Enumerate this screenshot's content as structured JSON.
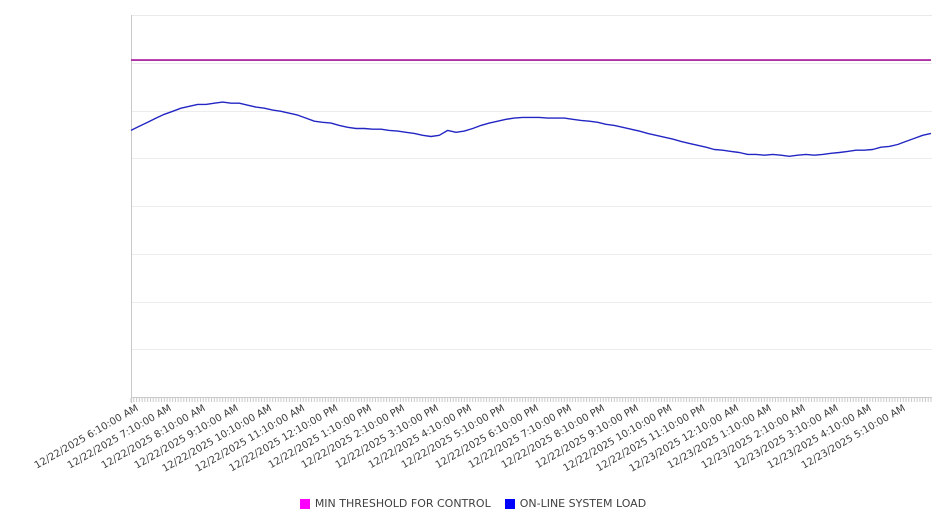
{
  "chart_data": {
    "type": "line",
    "title": "",
    "x_axis": {
      "label_angle_deg": -30,
      "label_interval_minutes": 60,
      "minor_tick_interval_minutes": 5,
      "total_minutes": 1440,
      "tick_labels": [
        "12/22/2025 6:10:00 AM",
        "12/22/2025 7:10:00 AM",
        "12/22/2025 8:10:00 AM",
        "12/22/2025 9:10:00 AM",
        "12/22/2025 10:10:00 AM",
        "12/22/2025 11:10:00 AM",
        "12/22/2025 12:10:00 PM",
        "12/22/2025 1:10:00 PM",
        "12/22/2025 2:10:00 PM",
        "12/22/2025 3:10:00 PM",
        "12/22/2025 4:10:00 PM",
        "12/22/2025 5:10:00 PM",
        "12/22/2025 6:10:00 PM",
        "12/22/2025 7:10:00 PM",
        "12/22/2025 8:10:00 PM",
        "12/22/2025 9:10:00 PM",
        "12/22/2025 10:10:00 PM",
        "12/22/2025 11:10:00 PM",
        "12/23/2025 12:10:00 AM",
        "12/23/2025 1:10:00 AM",
        "12/23/2025 2:10:00 AM",
        "12/23/2025 3:10:00 AM",
        "12/23/2025 4:10:00 AM",
        "12/23/2025 5:10:00 AM"
      ]
    },
    "y_axis": {
      "tick_labels_visible": false,
      "gridline_divisions": 8,
      "implied_range_pct": [
        0,
        100
      ]
    },
    "series": [
      {
        "name": "MIN THRESHOLD FOR CONTROL",
        "type": "threshold-line",
        "color": "#ff00ff",
        "render_color": "#ae2fa6",
        "value_pct": 88.2
      },
      {
        "name": "ON-LINE SYSTEM LOAD",
        "type": "line",
        "color": "#0000ff",
        "render_color": "#2326c3",
        "interval_minutes": 15,
        "values_pct": [
          69.8,
          70.9,
          71.9,
          73.0,
          74.0,
          74.8,
          75.6,
          76.1,
          76.6,
          76.6,
          76.9,
          77.2,
          76.9,
          76.9,
          76.4,
          75.9,
          75.6,
          75.1,
          74.8,
          74.3,
          73.8,
          73.0,
          72.2,
          71.9,
          71.7,
          71.1,
          70.6,
          70.3,
          70.3,
          70.1,
          70.1,
          69.8,
          69.6,
          69.3,
          69.0,
          68.5,
          68.2,
          68.5,
          69.8,
          69.3,
          69.6,
          70.3,
          71.1,
          71.7,
          72.2,
          72.7,
          73.0,
          73.2,
          73.2,
          73.2,
          73.0,
          73.0,
          73.0,
          72.7,
          72.4,
          72.2,
          71.9,
          71.4,
          71.1,
          70.6,
          70.1,
          69.6,
          69.0,
          68.5,
          68.0,
          67.5,
          66.9,
          66.4,
          65.9,
          65.4,
          64.8,
          64.6,
          64.3,
          64.0,
          63.5,
          63.5,
          63.3,
          63.5,
          63.3,
          63.0,
          63.3,
          63.5,
          63.3,
          63.5,
          63.8,
          64.0,
          64.3,
          64.6,
          64.6,
          64.8,
          65.4,
          65.6,
          66.1,
          66.9,
          67.7,
          68.5,
          69.0
        ]
      }
    ],
    "legend": {
      "position": "bottom-center",
      "items": [
        {
          "label": "MIN THRESHOLD FOR CONTROL",
          "swatch_color": "#ff00ff"
        },
        {
          "label": "ON-LINE SYSTEM LOAD",
          "swatch_color": "#0000ff"
        }
      ]
    },
    "style_colors": {
      "gridline": "#ececec",
      "top_border": "#e9e9e9",
      "axis": "#c9c9c9",
      "tick": "#c9c9c9",
      "label_text": "#3d3d3d",
      "background": "#ffffff"
    }
  }
}
